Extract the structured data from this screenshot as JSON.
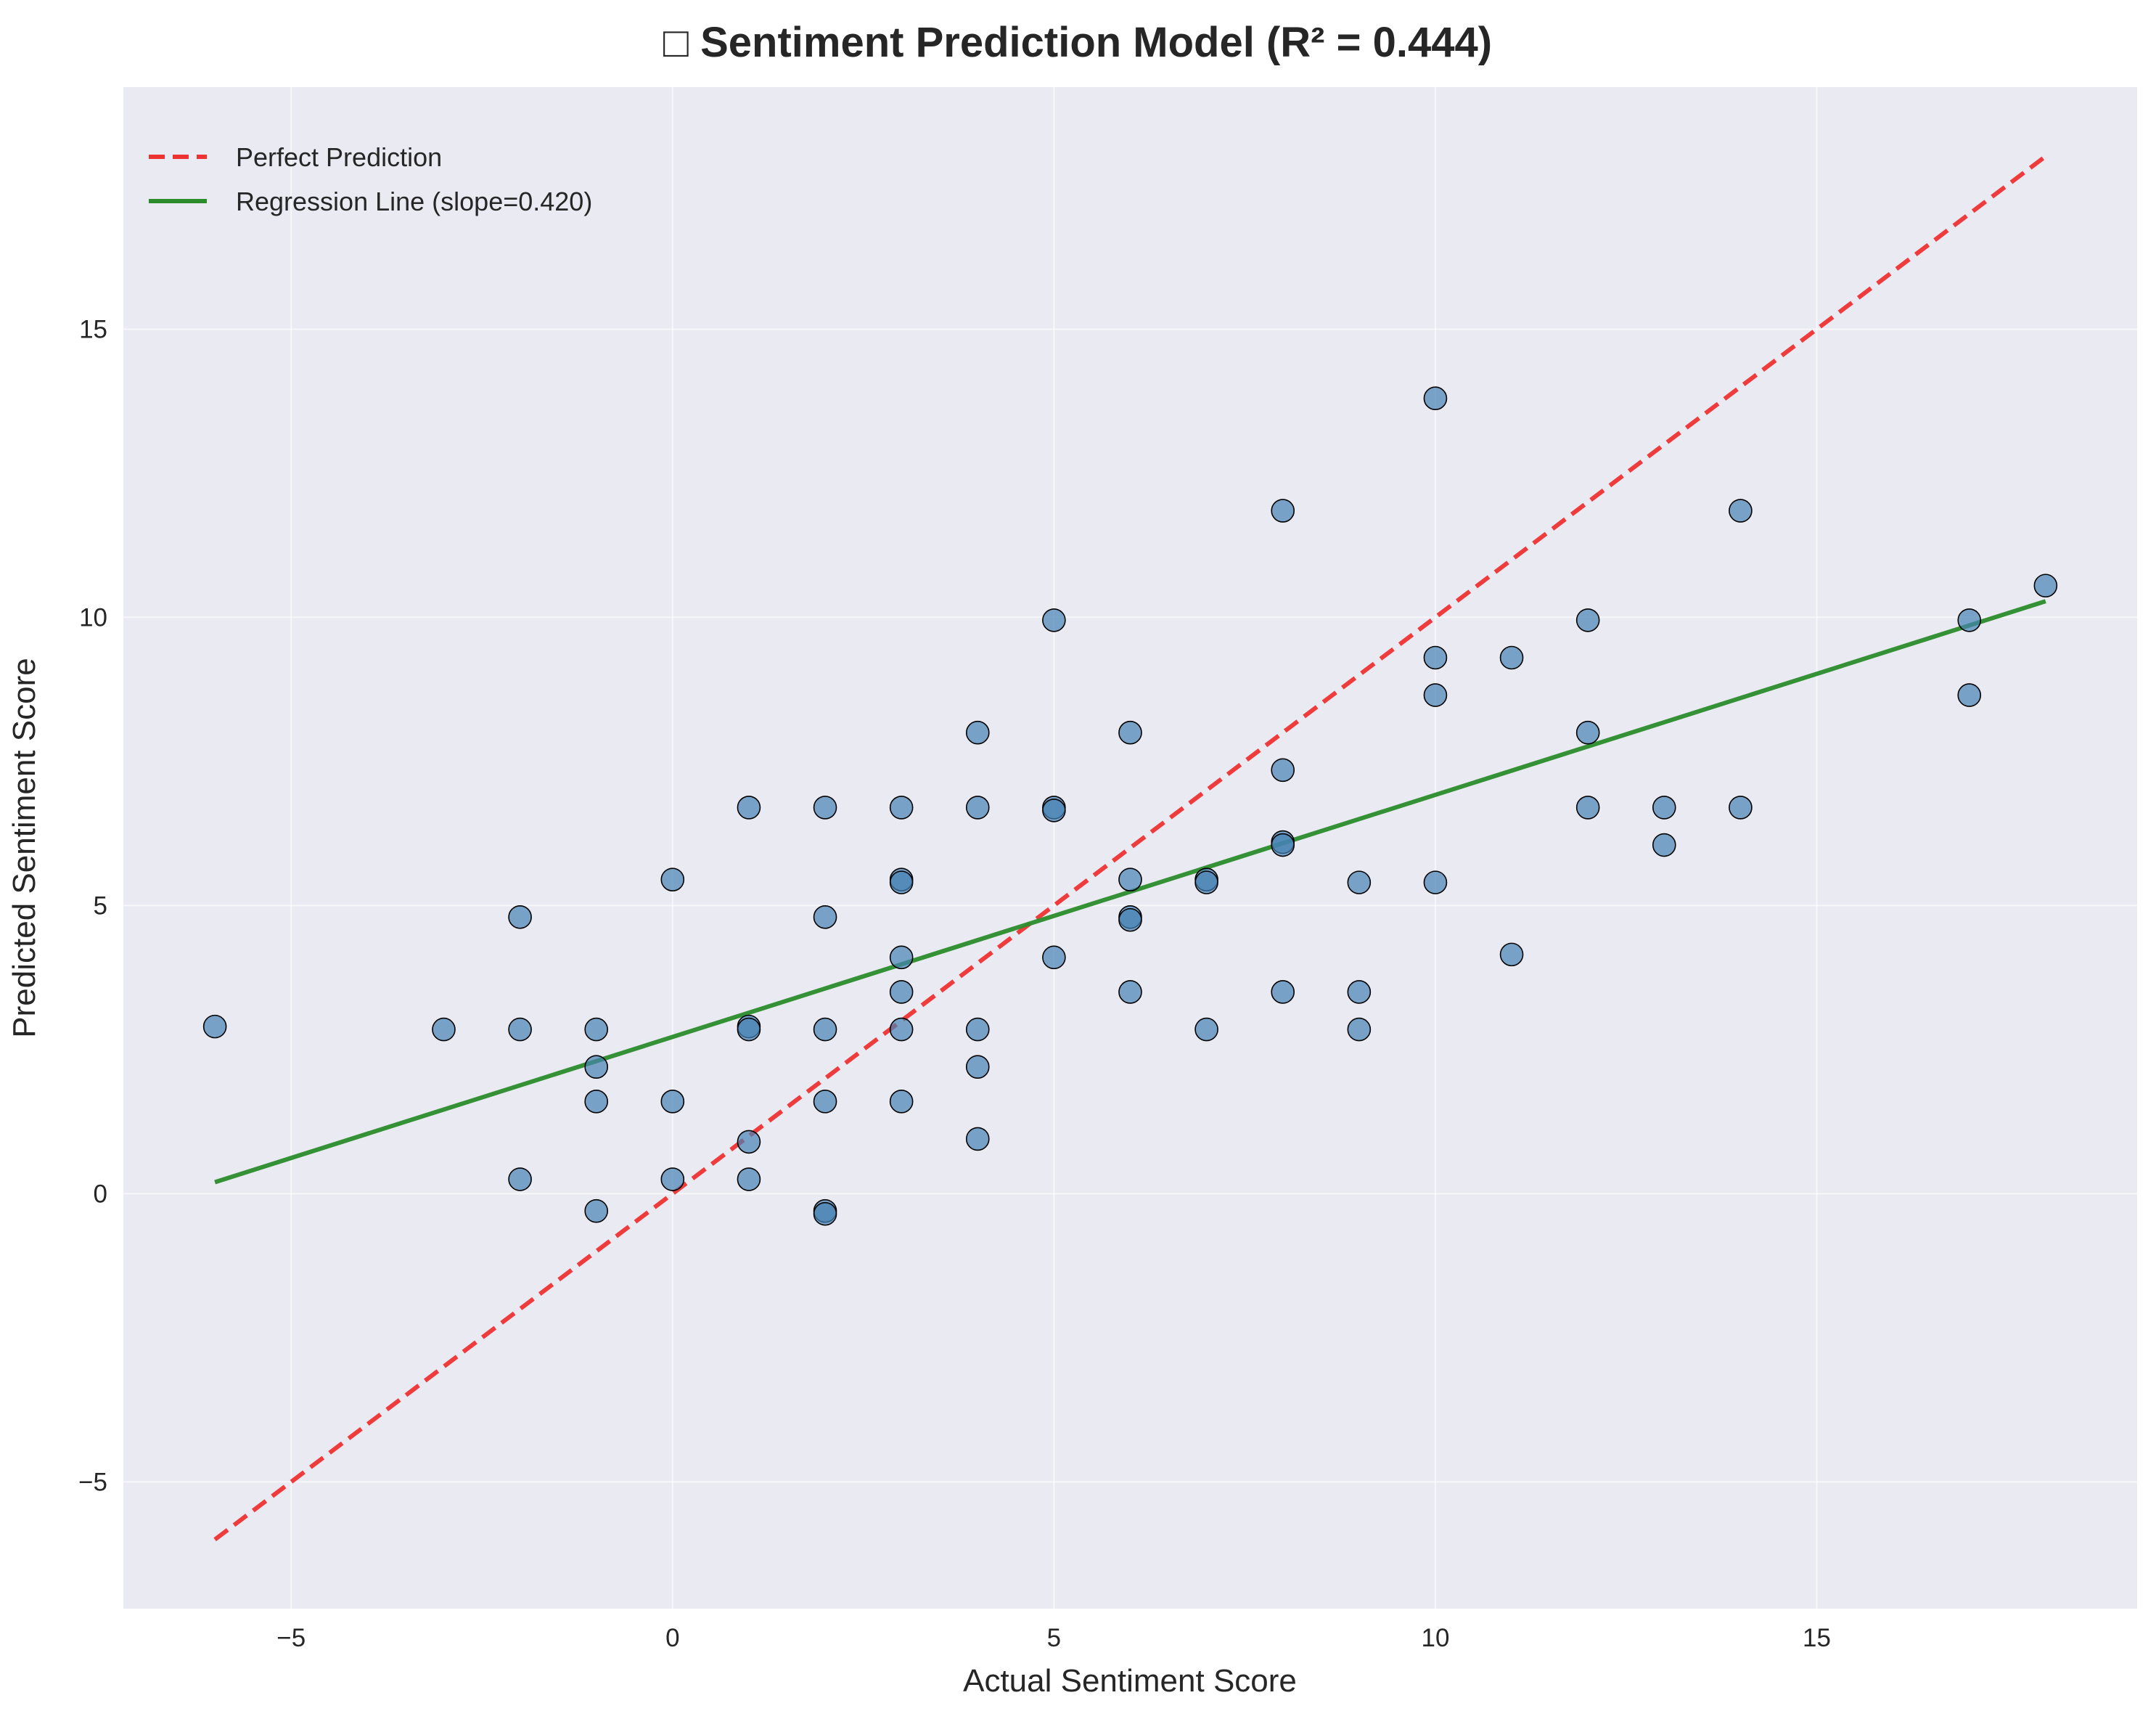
{
  "colors": {
    "plot_background": "#eaeaf2",
    "points": "#4682b4",
    "perfect_line": "#ee3333",
    "regression_line": "#2a8c2a"
  },
  "chart_data": {
    "type": "scatter",
    "title": "□ Sentiment Prediction Model (R² = 0.444)",
    "xlabel": "Actual Sentiment Score",
    "ylabel": "Predicted Sentiment Score",
    "xlim": [
      -7.2,
      19.2
    ],
    "ylim": [
      -7.2,
      19.2
    ],
    "xticks": [
      -5,
      0,
      5,
      10,
      15
    ],
    "yticks": [
      -5,
      0,
      5,
      10,
      15
    ],
    "xtick_labels": [
      "−5",
      "0",
      "5",
      "10",
      "15"
    ],
    "ytick_labels": [
      "−5",
      "0",
      "5",
      "10",
      "15"
    ],
    "grid": true,
    "legend_position": "top-left",
    "series": [
      {
        "name": "",
        "kind": "scatter",
        "points": [
          [
            -6,
            2.9
          ],
          [
            -3,
            2.85
          ],
          [
            -2,
            4.8
          ],
          [
            -2,
            2.85
          ],
          [
            -2,
            0.25
          ],
          [
            -1,
            2.85
          ],
          [
            -1,
            2.2
          ],
          [
            -1,
            1.6
          ],
          [
            -1,
            -0.3
          ],
          [
            0,
            5.45
          ],
          [
            0,
            1.6
          ],
          [
            0,
            0.25
          ],
          [
            1,
            6.7
          ],
          [
            1,
            2.9
          ],
          [
            1,
            2.85
          ],
          [
            1,
            0.9
          ],
          [
            1,
            0.25
          ],
          [
            2,
            6.7
          ],
          [
            2,
            4.8
          ],
          [
            2,
            2.85
          ],
          [
            2,
            1.6
          ],
          [
            2,
            -0.3
          ],
          [
            2,
            -0.35
          ],
          [
            3,
            6.7
          ],
          [
            3,
            5.45
          ],
          [
            3,
            5.4
          ],
          [
            3,
            4.1
          ],
          [
            3,
            3.5
          ],
          [
            3,
            2.85
          ],
          [
            3,
            1.6
          ],
          [
            4,
            8.0
          ],
          [
            4,
            6.7
          ],
          [
            4,
            2.85
          ],
          [
            4,
            2.2
          ],
          [
            4,
            0.95
          ],
          [
            5,
            9.95
          ],
          [
            5,
            6.7
          ],
          [
            5,
            6.65
          ],
          [
            5,
            4.1
          ],
          [
            6,
            8.0
          ],
          [
            6,
            5.45
          ],
          [
            6,
            4.8
          ],
          [
            6,
            4.75
          ],
          [
            6,
            3.5
          ],
          [
            7,
            5.45
          ],
          [
            7,
            5.4
          ],
          [
            7,
            2.85
          ],
          [
            8,
            11.85
          ],
          [
            8,
            7.35
          ],
          [
            8,
            6.1
          ],
          [
            8,
            6.05
          ],
          [
            8,
            3.5
          ],
          [
            9,
            5.4
          ],
          [
            9,
            3.5
          ],
          [
            9,
            2.85
          ],
          [
            10,
            13.8
          ],
          [
            10,
            9.3
          ],
          [
            10,
            8.65
          ],
          [
            10,
            5.4
          ],
          [
            11,
            9.3
          ],
          [
            11,
            4.15
          ],
          [
            12,
            9.95
          ],
          [
            12,
            8.0
          ],
          [
            12,
            6.7
          ],
          [
            13,
            6.7
          ],
          [
            13,
            6.05
          ],
          [
            14,
            11.85
          ],
          [
            14,
            6.7
          ],
          [
            17,
            9.95
          ],
          [
            17,
            8.65
          ],
          [
            18,
            10.55
          ]
        ]
      },
      {
        "name": "Perfect Prediction",
        "kind": "line",
        "style": "dashed",
        "x": [
          -6,
          18
        ],
        "y": [
          -6,
          18
        ]
      },
      {
        "name": "Regression Line (slope=0.420)",
        "kind": "line",
        "style": "solid",
        "x": [
          -6,
          18
        ],
        "y": [
          0.2,
          10.28
        ]
      }
    ]
  }
}
